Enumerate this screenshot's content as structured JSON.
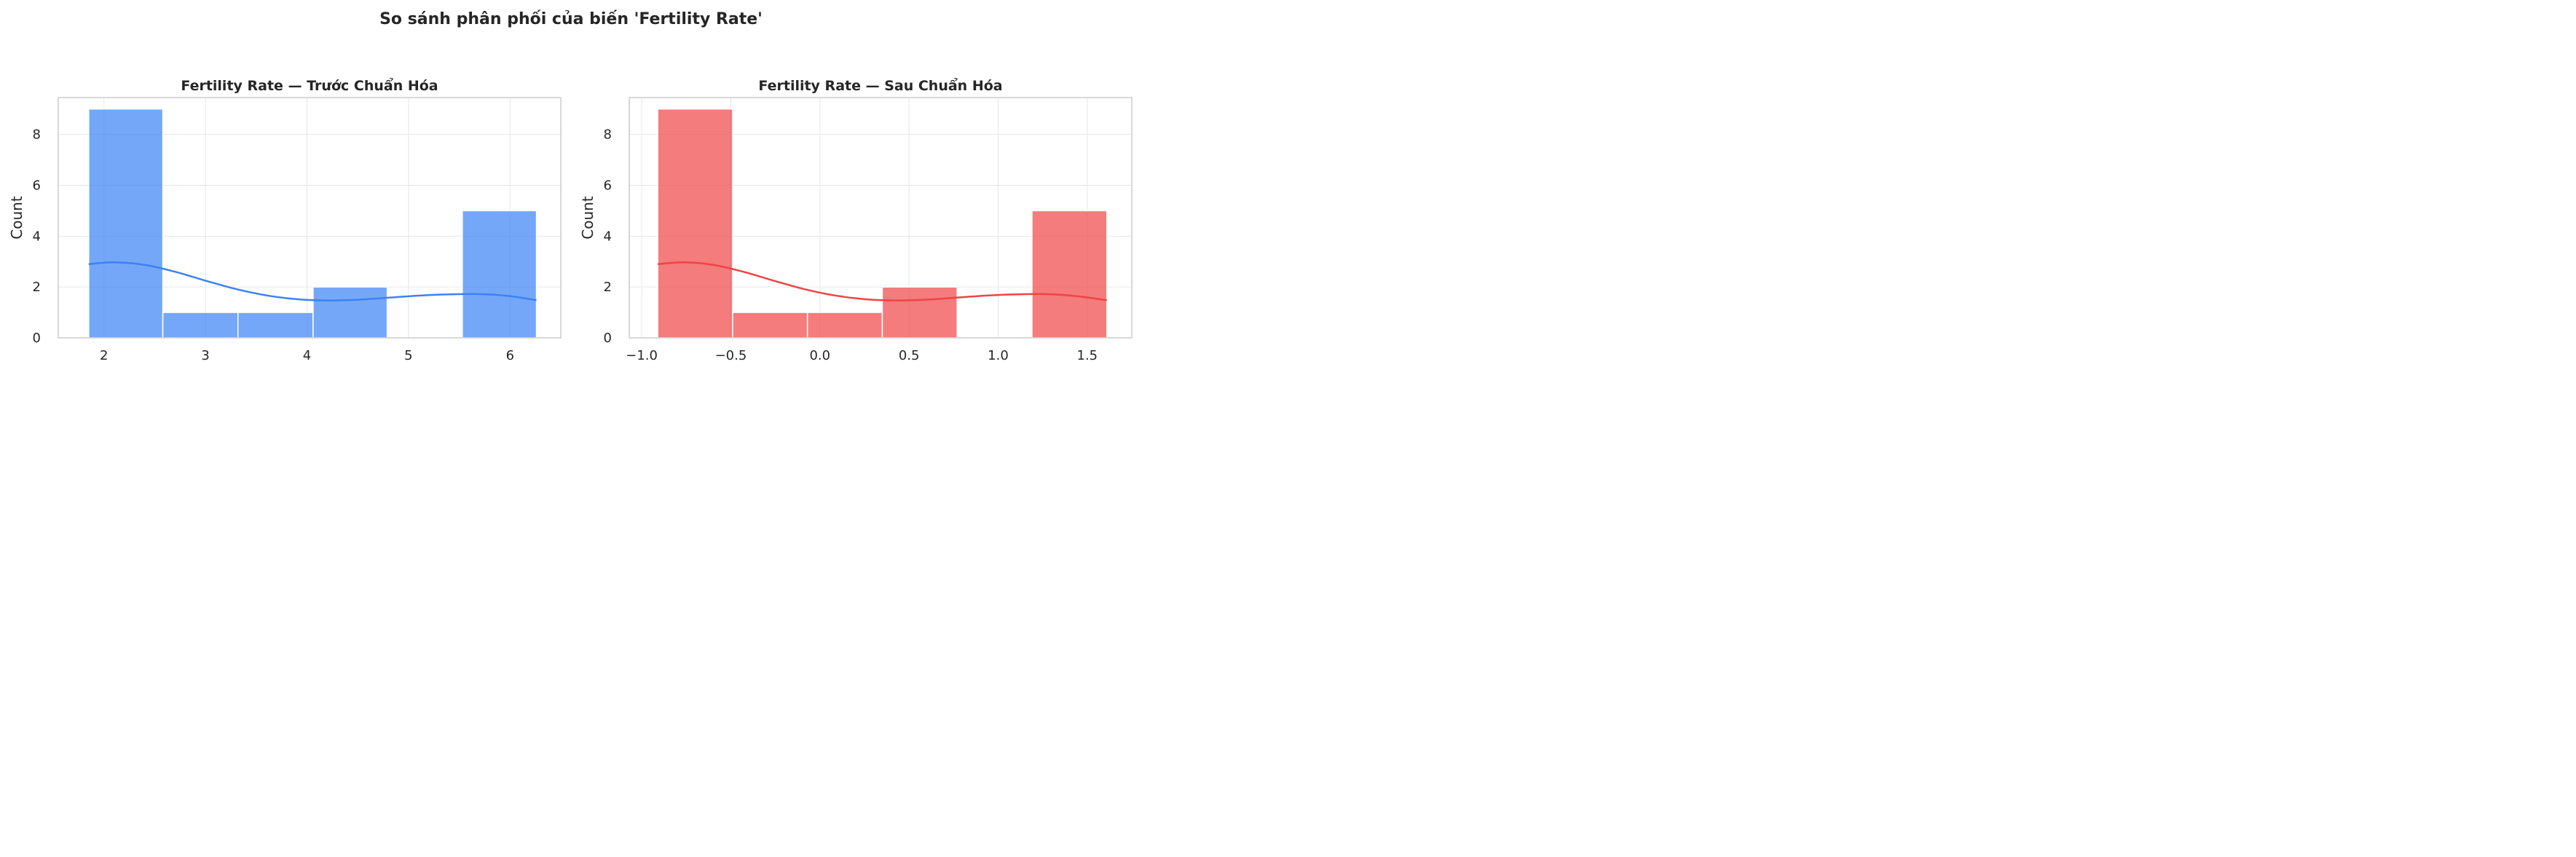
{
  "title": "So sánh phân phối của biến 'Fertility Rate'",
  "chart_data": [
    {
      "type": "bar",
      "title": "Fertility Rate — Trước Chuẩn Hóa",
      "xlabel": "",
      "ylabel": "Count",
      "color": "#3b82f6",
      "bins": [
        {
          "start": 1.85,
          "end": 2.58,
          "count": 9
        },
        {
          "start": 2.58,
          "end": 3.32,
          "count": 1
        },
        {
          "start": 3.32,
          "end": 4.06,
          "count": 1
        },
        {
          "start": 4.06,
          "end": 4.79,
          "count": 2
        },
        {
          "start": 4.79,
          "end": 5.53,
          "count": 0
        },
        {
          "start": 5.53,
          "end": 6.26,
          "count": 5
        }
      ],
      "kde": {
        "x": [
          1.85,
          2.1,
          2.4,
          2.7,
          3.0,
          3.3,
          3.6,
          3.9,
          4.2,
          4.5,
          4.8,
          5.1,
          5.4,
          5.7,
          6.0,
          6.26
        ],
        "y": [
          2.9,
          2.97,
          2.87,
          2.6,
          2.25,
          1.92,
          1.67,
          1.52,
          1.47,
          1.5,
          1.58,
          1.66,
          1.71,
          1.72,
          1.64,
          1.48
        ]
      },
      "xlim": [
        1.55,
        6.5
      ],
      "ylim": [
        0,
        9.45
      ],
      "xticks": [
        2,
        3,
        4,
        5,
        6
      ],
      "xtick_labels": [
        "2",
        "3",
        "4",
        "5",
        "6"
      ],
      "yticks": [
        0,
        2,
        4,
        6,
        8
      ],
      "ytick_labels": [
        "0",
        "2",
        "4",
        "6",
        "8"
      ],
      "grid": true
    },
    {
      "type": "bar",
      "title": "Fertility Rate — Sau Chuẩn Hóa",
      "xlabel": "",
      "ylabel": "Count",
      "color": "#ef4444",
      "bins": [
        {
          "start": -0.91,
          "end": -0.49,
          "count": 9
        },
        {
          "start": -0.49,
          "end": -0.07,
          "count": 1
        },
        {
          "start": -0.07,
          "end": 0.35,
          "count": 1
        },
        {
          "start": 0.35,
          "end": 0.77,
          "count": 2
        },
        {
          "start": 0.77,
          "end": 1.19,
          "count": 0
        },
        {
          "start": 1.19,
          "end": 1.61,
          "count": 5
        }
      ],
      "kde": {
        "x": [
          -0.91,
          -0.76,
          -0.6,
          -0.43,
          -0.26,
          -0.09,
          0.08,
          0.25,
          0.42,
          0.59,
          0.76,
          0.93,
          1.1,
          1.27,
          1.44,
          1.61
        ],
        "y": [
          2.9,
          2.97,
          2.87,
          2.6,
          2.25,
          1.92,
          1.67,
          1.52,
          1.47,
          1.5,
          1.58,
          1.66,
          1.71,
          1.72,
          1.64,
          1.48
        ]
      },
      "xlim": [
        -1.07,
        1.75
      ],
      "ylim": [
        0,
        9.45
      ],
      "xticks": [
        -1.0,
        -0.5,
        0.0,
        0.5,
        1.0,
        1.5
      ],
      "xtick_labels": [
        "−1.0",
        "−0.5",
        "0.0",
        "0.5",
        "1.0",
        "1.5"
      ],
      "yticks": [
        0,
        2,
        4,
        6,
        8
      ],
      "ytick_labels": [
        "0",
        "2",
        "4",
        "6",
        "8"
      ],
      "grid": true
    }
  ]
}
